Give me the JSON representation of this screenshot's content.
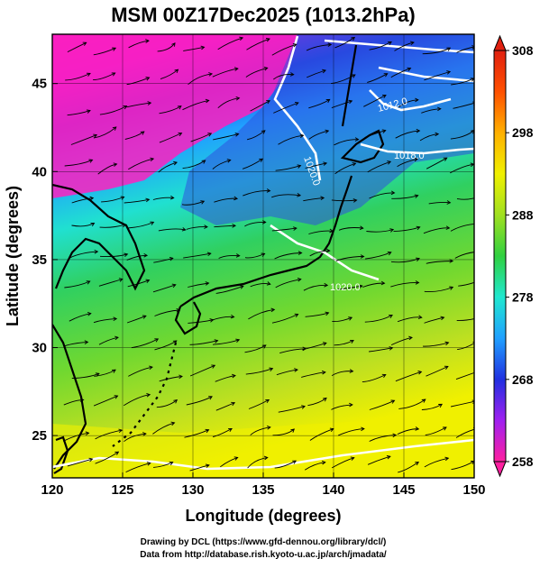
{
  "title": "MSM 00Z17Dec2025 (1013.2hPa)",
  "x_axis": {
    "label": "Longitude (degrees)",
    "range": [
      120,
      150
    ],
    "ticks": [
      "120",
      "125",
      "130",
      "135",
      "140",
      "145",
      "150"
    ]
  },
  "y_axis": {
    "label": "Latitude  (degrees)",
    "range": [
      22.6,
      47.8
    ],
    "ticks": [
      "25",
      "30",
      "35",
      "40",
      "45"
    ]
  },
  "colorbar": {
    "range": [
      258,
      308
    ],
    "ticks": [
      "258",
      "268",
      "278",
      "288",
      "298",
      "308"
    ],
    "colors": [
      "#ff1fa0",
      "#a020f0",
      "#2030e0",
      "#20a0ff",
      "#20e8d0",
      "#30d040",
      "#a0e020",
      "#f0f000",
      "#ffb000",
      "#ff5000",
      "#e02010"
    ]
  },
  "contour_labels": [
    "1012.0",
    "1018.0",
    "1020.0",
    "1020.0"
  ],
  "footer": {
    "line1": "Drawing by DCL (https://www.gfd-dennou.org/library/dcl/)",
    "line2": "Data from http://database.rish.kyoto-u.ac.jp/arch/jmadata/"
  },
  "colors": {
    "contour": "#ffffff",
    "coastline": "#000000",
    "streamline": "#000000"
  }
}
